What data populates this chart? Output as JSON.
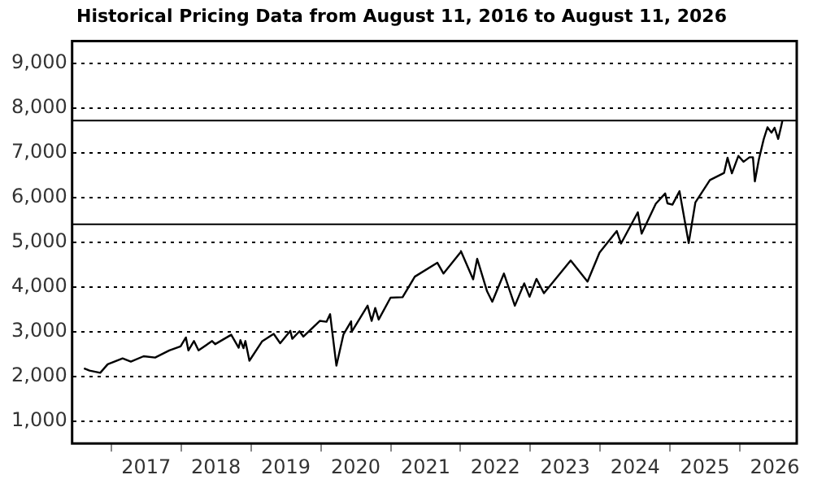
{
  "chart_data": {
    "type": "line",
    "title": "Historical Pricing Data from August 11, 2016 to August 11, 2026",
    "x": [
      "2016-08-11",
      "2016-09-09",
      "2016-11-04",
      "2016-12-13",
      "2017-03-01",
      "2017-04-13",
      "2017-06-19",
      "2017-08-18",
      "2017-10-31",
      "2017-12-29",
      "2018-01-26",
      "2018-02-08",
      "2018-03-09",
      "2018-04-02",
      "2018-06-12",
      "2018-06-28",
      "2018-09-20",
      "2018-10-29",
      "2018-11-07",
      "2018-11-23",
      "2018-12-03",
      "2018-12-24",
      "2019-02-28",
      "2019-04-30",
      "2019-06-03",
      "2019-07-26",
      "2019-08-05",
      "2019-09-12",
      "2019-10-02",
      "2019-12-27",
      "2020-01-31",
      "2020-02-19",
      "2020-03-23",
      "2020-04-29",
      "2020-06-08",
      "2020-06-11",
      "2020-09-02",
      "2020-09-23",
      "2020-10-12",
      "2020-10-30",
      "2020-12-31",
      "2021-03-04",
      "2021-05-07",
      "2021-09-02",
      "2021-10-04",
      "2021-12-31",
      "2022-01-03",
      "2022-03-08",
      "2022-03-29",
      "2022-05-20",
      "2022-06-16",
      "2022-08-16",
      "2022-10-12",
      "2022-11-30",
      "2022-12-28",
      "2023-02-02",
      "2023-03-13",
      "2023-07-31",
      "2023-10-27",
      "2023-12-29",
      "2024-03-28",
      "2024-04-19",
      "2024-07-16",
      "2024-08-05",
      "2024-10-18",
      "2024-12-06",
      "2024-12-18",
      "2025-01-13",
      "2025-02-19",
      "2025-04-08",
      "2025-05-13",
      "2025-07-28",
      "2025-10-10",
      "2025-10-28",
      "2025-11-20",
      "2025-12-24",
      "2026-01-20",
      "2026-02-20",
      "2026-03-10",
      "2026-03-20",
      "2026-04-10",
      "2026-05-05",
      "2026-05-25",
      "2026-06-15",
      "2026-07-01",
      "2026-07-20",
      "2026-08-05",
      "2026-08-11"
    ],
    "series": [
      {
        "color": "#000000",
        "values": [
          2180,
          2130,
          2080,
          2270,
          2400,
          2330,
          2450,
          2420,
          2580,
          2670,
          2870,
          2580,
          2790,
          2580,
          2790,
          2720,
          2930,
          2640,
          2810,
          2630,
          2790,
          2350,
          2780,
          2950,
          2740,
          3020,
          2840,
          3010,
          2890,
          3240,
          3220,
          3390,
          2240,
          2940,
          3230,
          3000,
          3580,
          3240,
          3530,
          3270,
          3760,
          3770,
          4230,
          4540,
          4300,
          4770,
          4800,
          4170,
          4630,
          3900,
          3670,
          4300,
          3580,
          4080,
          3780,
          4180,
          3860,
          4590,
          4120,
          4770,
          5250,
          4970,
          5670,
          5190,
          5860,
          6090,
          5870,
          5840,
          6140,
          4980,
          5890,
          6390,
          6550,
          6890,
          6540,
          6930,
          6800,
          6900,
          6900,
          6360,
          6850,
          7300,
          7570,
          7450,
          7560,
          7310,
          7600,
          7720
        ]
      }
    ],
    "xlim": [
      "2016-06-10",
      "2026-10-25"
    ],
    "xticks": [
      {
        "value": "2017-01-01",
        "label": null
      },
      {
        "value": "2017-07-02",
        "label": "2017"
      },
      {
        "value": "2018-01-01",
        "label": null
      },
      {
        "value": "2018-07-02",
        "label": "2018"
      },
      {
        "value": "2019-01-01",
        "label": null
      },
      {
        "value": "2019-07-02",
        "label": "2019"
      },
      {
        "value": "2020-01-01",
        "label": null
      },
      {
        "value": "2020-07-02",
        "label": "2020"
      },
      {
        "value": "2021-01-01",
        "label": null
      },
      {
        "value": "2021-07-02",
        "label": "2021"
      },
      {
        "value": "2022-01-01",
        "label": null
      },
      {
        "value": "2022-07-02",
        "label": "2022"
      },
      {
        "value": "2023-01-01",
        "label": null
      },
      {
        "value": "2023-07-02",
        "label": "2023"
      },
      {
        "value": "2024-01-01",
        "label": null
      },
      {
        "value": "2024-07-02",
        "label": "2024"
      },
      {
        "value": "2025-01-01",
        "label": null
      },
      {
        "value": "2025-07-02",
        "label": "2025"
      },
      {
        "value": "2026-01-01",
        "label": null
      },
      {
        "value": "2026-07-02",
        "label": "2026"
      }
    ],
    "ylim": [
      500,
      9500
    ],
    "yticks": [
      {
        "value": 1000,
        "label": "1,000"
      },
      {
        "value": 2000,
        "label": "2,000"
      },
      {
        "value": 3000,
        "label": "3,000"
      },
      {
        "value": 4000,
        "label": "4,000"
      },
      {
        "value": 5000,
        "label": "5,000"
      },
      {
        "value": 6000,
        "label": "6,000"
      },
      {
        "value": 7000,
        "label": "7,000"
      },
      {
        "value": 8000,
        "label": "8,000"
      },
      {
        "value": 9000,
        "label": "9,000"
      }
    ],
    "grid": "y",
    "marker": "none",
    "line_style": "solid",
    "ref_lines": [
      {
        "axis": "y",
        "value": 7720,
        "color": "#000000"
      },
      {
        "axis": "y",
        "value": 5400,
        "color": "#000000"
      }
    ]
  }
}
